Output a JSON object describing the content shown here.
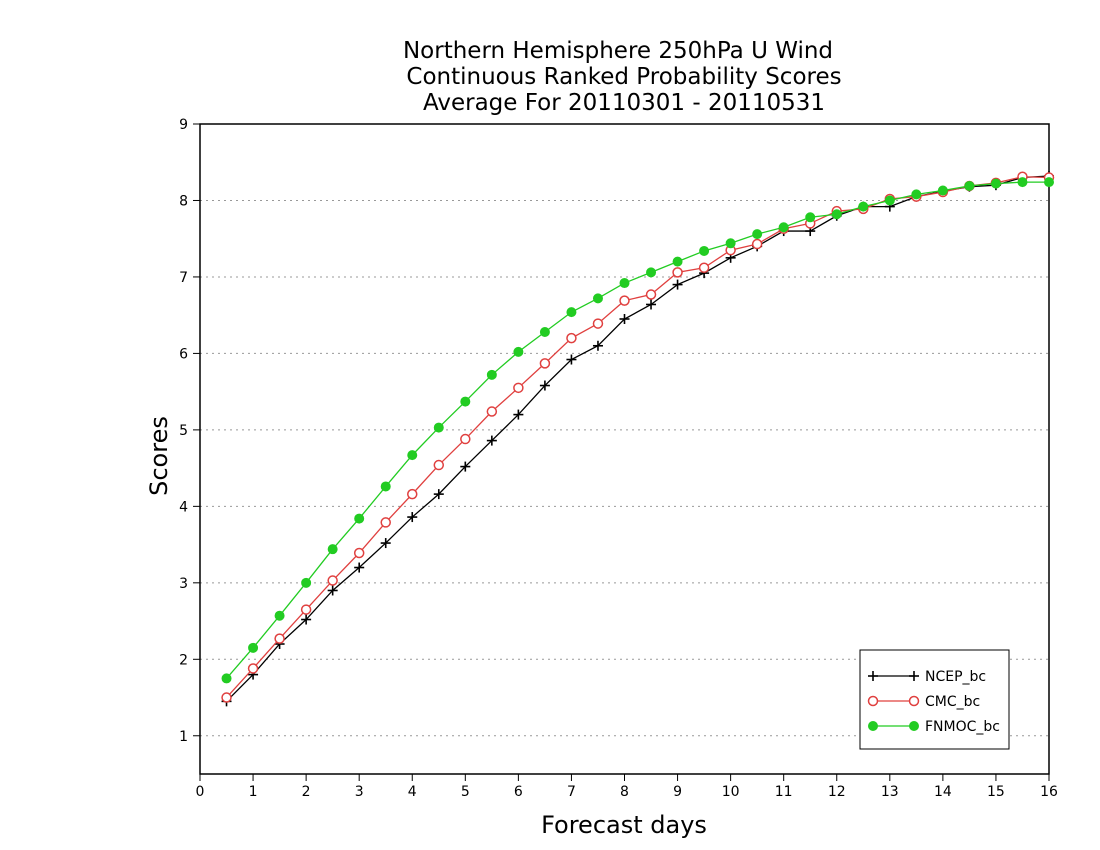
{
  "chart_data": {
    "type": "line",
    "title": [
      "Northern Hemisphere 250hPa U Wind",
      "Continuous Ranked Probability Scores",
      "Average For 20110301 - 20110531"
    ],
    "xlabel": "Forecast days",
    "ylabel": "Scores",
    "xlim": [
      0,
      16
    ],
    "ylim": [
      0.5,
      9
    ],
    "xticks": [
      0,
      1,
      2,
      3,
      4,
      5,
      6,
      7,
      8,
      9,
      10,
      11,
      12,
      13,
      14,
      15,
      16
    ],
    "yticks": [
      1,
      2,
      3,
      4,
      5,
      6,
      7,
      8,
      9
    ],
    "grid": "horizontal dotted",
    "legend_position": "bottom-right",
    "x": [
      0.5,
      1,
      1.5,
      2,
      2.5,
      3,
      3.5,
      4,
      4.5,
      5,
      5.5,
      6,
      6.5,
      7,
      7.5,
      8,
      8.5,
      9,
      9.5,
      10,
      10.5,
      11,
      11.5,
      12,
      12.5,
      13,
      13.5,
      14,
      14.5,
      15,
      15.5,
      16
    ],
    "series": [
      {
        "name": "NCEP_bc",
        "color": "#000000",
        "marker": "plus",
        "values": [
          1.45,
          1.8,
          2.2,
          2.52,
          2.9,
          3.2,
          3.52,
          3.86,
          4.16,
          4.52,
          4.86,
          5.2,
          5.58,
          5.92,
          6.1,
          6.45,
          6.64,
          6.9,
          7.05,
          7.25,
          7.4,
          7.6,
          7.6,
          7.8,
          7.92,
          7.92,
          8.05,
          8.12,
          8.18,
          8.2,
          8.3,
          8.32
        ]
      },
      {
        "name": "CMC_bc",
        "color": "#e0403f",
        "marker": "open-circle",
        "values": [
          1.5,
          1.88,
          2.27,
          2.65,
          3.03,
          3.39,
          3.79,
          4.16,
          4.54,
          4.88,
          5.24,
          5.55,
          5.87,
          6.2,
          6.39,
          6.69,
          6.77,
          7.06,
          7.12,
          7.35,
          7.43,
          7.63,
          7.7,
          7.86,
          7.89,
          8.02,
          8.05,
          8.11,
          8.19,
          8.23,
          8.31,
          8.3
        ]
      },
      {
        "name": "FNMOC_bc",
        "color": "#22cc22",
        "marker": "filled-circle",
        "values": [
          1.75,
          2.15,
          2.57,
          3.0,
          3.44,
          3.84,
          4.26,
          4.67,
          5.03,
          5.37,
          5.72,
          6.02,
          6.28,
          6.54,
          6.72,
          6.92,
          7.06,
          7.2,
          7.34,
          7.44,
          7.56,
          7.65,
          7.78,
          7.82,
          7.92,
          8.0,
          8.08,
          8.13,
          8.19,
          8.22,
          8.24,
          8.24
        ]
      }
    ]
  }
}
